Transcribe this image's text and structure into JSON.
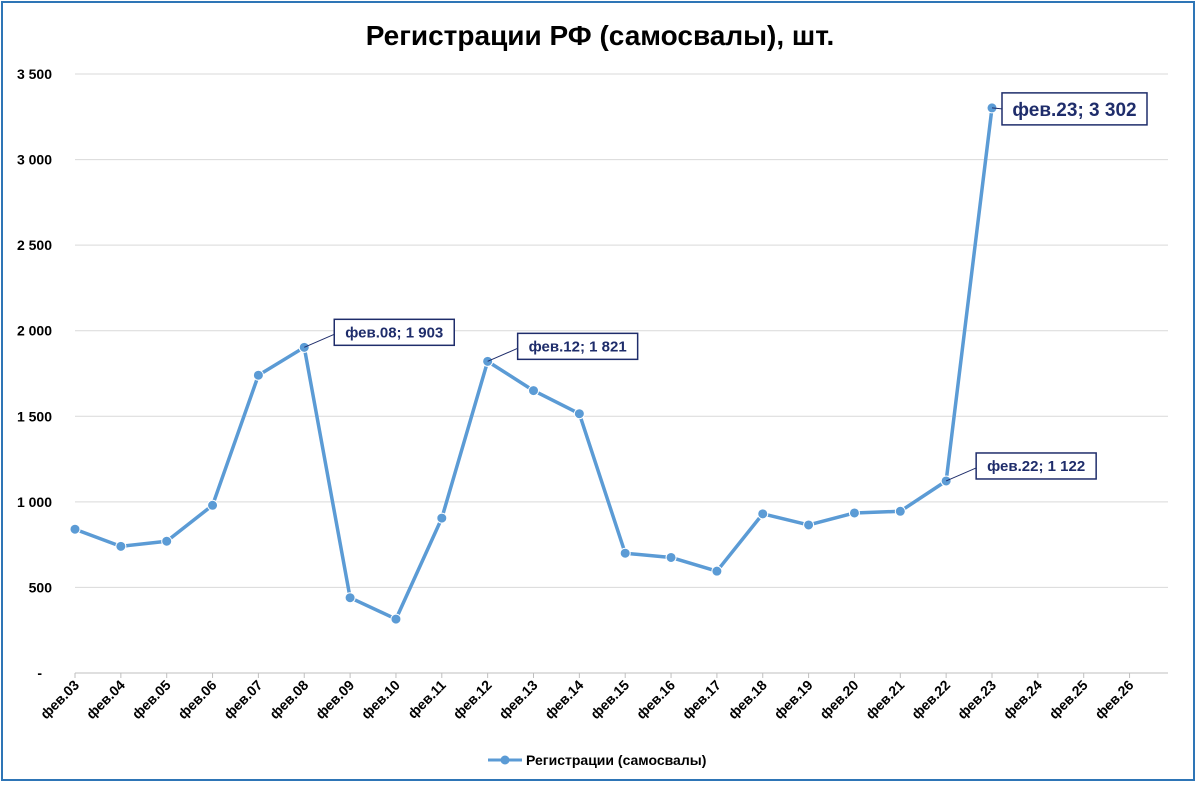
{
  "chart_data": {
    "type": "line",
    "title": "Регистрации РФ (самосвалы), шт.",
    "xlabel": "",
    "ylabel": "",
    "ylim": [
      0,
      3500
    ],
    "y_ticks": [
      "-",
      "500",
      "1 000",
      "1 500",
      "2 000",
      "2 500",
      "3 000",
      "3 500"
    ],
    "y_tick_values": [
      0,
      500,
      1000,
      1500,
      2000,
      2500,
      3000,
      3500
    ],
    "grid": "horizontal",
    "legend_position": "bottom",
    "categories": [
      "фев.03",
      "фев.04",
      "фев.05",
      "фев.06",
      "фев.07",
      "фев.08",
      "фев.09",
      "фев.10",
      "фев.11",
      "фев.12",
      "фев.13",
      "фев.14",
      "фев.15",
      "фев.16",
      "фев.17",
      "фев.18",
      "фев.19",
      "фев.20",
      "фев.21",
      "фев.22",
      "фев.23",
      "фев.24",
      "фев.25",
      "фев.26"
    ],
    "series": [
      {
        "name": "Регистрации (самосвалы)",
        "color": "#5b9bd5",
        "values": [
          840,
          740,
          770,
          980,
          1740,
          1903,
          440,
          315,
          905,
          1821,
          1650,
          1515,
          700,
          675,
          595,
          930,
          865,
          935,
          945,
          1122,
          3302,
          null,
          null,
          null
        ]
      }
    ],
    "annotations": [
      {
        "index": 5,
        "label": "фев.08;  1 903",
        "size": "normal"
      },
      {
        "index": 9,
        "label": "фев.12;  1 821",
        "size": "normal"
      },
      {
        "index": 19,
        "label": "фев.22;  1 122",
        "size": "normal"
      },
      {
        "index": 20,
        "label": "фев.23;  3 302",
        "size": "big"
      }
    ]
  }
}
